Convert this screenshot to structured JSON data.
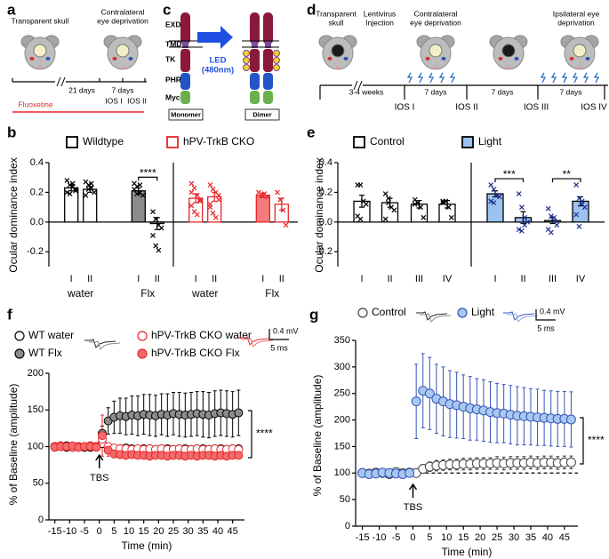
{
  "panels": {
    "letters": [
      "a",
      "b",
      "c",
      "d",
      "e",
      "f",
      "g"
    ]
  },
  "diagrams": {
    "a": {
      "skull": "Transparent skull",
      "deprivation": [
        "Contralateral",
        "eye deprivation"
      ],
      "gap": "21 days",
      "period": "7 days",
      "drug": "Fluoxetine",
      "ios": [
        "IOS I",
        "IOS II"
      ]
    },
    "c": {
      "domains": [
        "EXD",
        "TMD",
        "TK",
        "PHR",
        "Myc"
      ],
      "led": [
        "LED",
        "(480nm)"
      ],
      "states": [
        "Monomer",
        "Dimer"
      ]
    },
    "d": {
      "skull": [
        "Transparent",
        "skull"
      ],
      "injection": [
        "Lentivirus",
        "Injection"
      ],
      "contra": [
        "Contralateral",
        "eye deprivation"
      ],
      "ipsi": [
        "Ipsilateral eye",
        "deprivation"
      ],
      "wait": "3-4 weeks",
      "periods": [
        "7 days",
        "7 days",
        "7 days"
      ],
      "ios": [
        "IOS I",
        "IOS II",
        "IOS III",
        "IOS IV"
      ]
    }
  },
  "chart_data": [
    {
      "type": "bar",
      "ylabel": "Ocular dominance index",
      "categories": [
        "I",
        "II",
        "I",
        "II"
      ],
      "groups": [
        "water",
        "Flx"
      ],
      "ylim": [
        -0.3,
        0.4
      ],
      "yticks": [
        -0.2,
        {
          "value": 0,
          "label": "0.0"
        },
        0.2,
        0.4
      ],
      "series": [
        {
          "name": "Wildtype",
          "color": "#000000",
          "point_color": "#000000",
          "fills": [
            "#ffffff",
            "#ffffff",
            "#8c8c8c",
            "#ffffff"
          ],
          "values": [
            0.23,
            0.22,
            0.21,
            -0.01
          ],
          "errors": [
            0.02,
            0.02,
            0.02,
            0.04
          ],
          "points": [
            [
              0.28,
              0.25,
              0.24,
              0.22,
              0.2,
              0.19,
              0.26,
              0.21
            ],
            [
              0.27,
              0.25,
              0.23,
              0.2,
              0.18,
              0.22,
              0.26
            ],
            [
              0.26,
              0.24,
              0.2,
              0.18,
              0.22,
              0.19,
              0.25
            ],
            [
              0.07,
              0.02,
              -0.02,
              -0.04,
              -0.09,
              -0.16,
              -0.19
            ]
          ]
        },
        {
          "name": "hPV-TrkB CKO",
          "color": "#e8262a",
          "point_color": "#e8262a",
          "fills": [
            "#ffffff",
            "#ffffff",
            "#f47c7c",
            "#ffffff"
          ],
          "values": [
            0.16,
            0.17,
            0.18,
            0.12
          ],
          "errors": [
            0.03,
            0.03,
            0.015,
            0.04
          ],
          "points": [
            [
              0.26,
              0.23,
              0.18,
              0.14,
              0.11,
              0.07,
              0.05,
              0.15,
              0.2
            ],
            [
              0.25,
              0.22,
              0.2,
              0.15,
              0.1,
              0.06,
              0.03,
              0.18,
              0.12
            ],
            [
              0.2,
              0.18,
              0.19,
              0.17
            ],
            [
              0.2,
              0.15,
              0.08,
              -0.02
            ]
          ]
        }
      ],
      "annotations": [
        "****"
      ]
    },
    {
      "type": "bar",
      "ylabel": "Ocular dominance index",
      "categories": [
        "I",
        "II",
        "III",
        "IV"
      ],
      "ylim": [
        -0.3,
        0.4
      ],
      "yticks": [
        -0.2,
        {
          "value": 0,
          "label": "0.0"
        },
        0.2,
        0.4
      ],
      "series": [
        {
          "name": "Control",
          "color": "#000000",
          "point_color": "#000000",
          "fills": [
            "#ffffff",
            "#ffffff",
            "#ffffff",
            "#ffffff"
          ],
          "values": [
            0.14,
            0.13,
            0.12,
            0.12
          ],
          "errors": [
            0.04,
            0.03,
            0.025,
            0.025
          ],
          "points": [
            [
              0.25,
              0.25,
              0.14,
              0.12,
              0.04,
              0.02
            ],
            [
              0.19,
              0.16,
              0.1,
              0.08,
              0.02,
              0.13
            ],
            [
              0.15,
              0.13,
              0.1,
              0.03,
              0.12
            ],
            [
              0.14,
              0.14,
              0.1,
              0.03,
              0.13
            ]
          ]
        },
        {
          "name": "Light",
          "color": "#000000",
          "point_color": "#1f2f8f",
          "fills": [
            "#9cc3ef",
            "#9cc3ef",
            "#9cc3ef",
            "#9cc3ef"
          ],
          "values": [
            0.19,
            0.03,
            0.01,
            0.14
          ],
          "errors": [
            0.02,
            0.04,
            0.02,
            0.03
          ],
          "points": [
            [
              0.25,
              0.22,
              0.18,
              0.17,
              0.14,
              0.13,
              0.18
            ],
            [
              0.19,
              0.1,
              0.03,
              0.0,
              -0.05,
              -0.06,
              -0.02
            ],
            [
              0.09,
              0.04,
              0.01,
              -0.02,
              -0.05,
              -0.07,
              0.03
            ],
            [
              0.25,
              0.16,
              0.14,
              0.1,
              0.05,
              -0.03,
              0.12
            ]
          ]
        }
      ],
      "annotations": [
        "***",
        "**"
      ]
    },
    {
      "type": "line",
      "xlabel": "Time (min)",
      "ylabel": "% of Baseline (amplitude)",
      "x": [
        -15,
        -13,
        -11,
        -9,
        -7,
        -5,
        -3,
        -1,
        1,
        3,
        5,
        7,
        9,
        11,
        13,
        15,
        17,
        19,
        21,
        23,
        25,
        27,
        29,
        31,
        33,
        35,
        37,
        39,
        41,
        43,
        45,
        47
      ],
      "xlim": [
        -17,
        49
      ],
      "xticks": [
        -15,
        -10,
        -5,
        0,
        5,
        10,
        15,
        20,
        25,
        30,
        35,
        40,
        45
      ],
      "ylim": [
        0,
        200
      ],
      "yticks": [
        0,
        50,
        100,
        150,
        200
      ],
      "series": [
        {
          "name": "WT water",
          "color": "#000000",
          "fill": "#ffffff",
          "values": [
            100,
            101,
            99,
            100,
            100,
            99,
            101,
            100,
            104,
            99,
            97,
            97,
            98,
            97,
            96,
            97,
            97,
            96,
            97,
            97,
            96,
            97,
            97,
            96,
            97,
            97,
            96,
            97,
            97,
            96,
            97,
            97
          ]
        },
        {
          "name": "WT Flx",
          "color": "#000000",
          "fill": "#8c8c8c",
          "values": [
            100,
            100,
            101,
            99,
            100,
            100,
            99,
            100,
            118,
            135,
            140,
            142,
            141,
            143,
            142,
            144,
            143,
            142,
            144,
            143,
            145,
            144,
            143,
            144,
            145,
            144,
            143,
            145,
            146,
            145,
            144,
            146
          ],
          "errors": [
            3,
            3,
            3,
            3,
            3,
            3,
            3,
            3,
            10,
            18,
            22,
            24,
            25,
            26,
            27,
            27,
            28,
            28,
            28,
            29,
            29,
            30,
            30,
            30,
            30,
            31,
            31,
            31,
            31,
            31,
            31,
            31
          ]
        },
        {
          "name": "hPV-TrkB CKO water",
          "color": "#e8262a",
          "fill": "#ffffff",
          "values": [
            100,
            101,
            100,
            99,
            100,
            100,
            101,
            100,
            110,
            100,
            98,
            97,
            97,
            96,
            97,
            96,
            97,
            96,
            97,
            96,
            96,
            97,
            96,
            96,
            97,
            96,
            96,
            97,
            96,
            96,
            97,
            96
          ]
        },
        {
          "name": "hPV-TrkB CKO Flx",
          "color": "#e8262a",
          "fill": "#f26b6b",
          "values": [
            99,
            100,
            100,
            101,
            99,
            100,
            100,
            99,
            115,
            95,
            90,
            89,
            88,
            89,
            88,
            88,
            87,
            88,
            88,
            87,
            88,
            88,
            87,
            88,
            87,
            88,
            88,
            87,
            88,
            87,
            88,
            88
          ],
          "errors": [
            2,
            2,
            2,
            2,
            2,
            2,
            2,
            2,
            28,
            8,
            5,
            4,
            4,
            4,
            4,
            4,
            4,
            4,
            4,
            4,
            4,
            4,
            4,
            4,
            4,
            4,
            4,
            4,
            4,
            4,
            4,
            4
          ]
        }
      ],
      "annotations": [
        "TBS",
        "****",
        "0.4 mV",
        "5 ms"
      ]
    },
    {
      "type": "line",
      "xlabel": "Time (min)",
      "ylabel": "% of Baseline (amplitude)",
      "x": [
        -15,
        -13,
        -11,
        -9,
        -7,
        -5,
        -3,
        -1,
        1,
        3,
        5,
        7,
        9,
        11,
        13,
        15,
        17,
        19,
        21,
        23,
        25,
        27,
        29,
        31,
        33,
        35,
        37,
        39,
        41,
        43,
        45,
        47
      ],
      "xlim": [
        -17,
        49
      ],
      "xticks": [
        -15,
        -10,
        -5,
        0,
        5,
        10,
        15,
        20,
        25,
        30,
        35,
        40,
        45
      ],
      "ylim": [
        0,
        350
      ],
      "yticks": [
        0,
        50,
        100,
        150,
        200,
        250,
        300,
        350
      ],
      "baseline": 100,
      "series": [
        {
          "name": "Control",
          "color": "#444444",
          "fill": "#ffffff",
          "values": [
            100,
            99,
            101,
            100,
            98,
            102,
            100,
            101,
            100,
            108,
            112,
            114,
            115,
            116,
            116,
            117,
            117,
            118,
            118,
            118,
            119,
            118,
            119,
            119,
            119,
            120,
            119,
            120,
            120,
            119,
            120,
            120
          ],
          "errors": [
            4,
            4,
            4,
            4,
            4,
            4,
            4,
            4,
            6,
            8,
            9,
            10,
            10,
            10,
            10,
            11,
            11,
            11,
            11,
            11,
            12,
            12,
            12,
            12,
            12,
            12,
            12,
            12,
            12,
            12,
            12,
            12
          ]
        },
        {
          "name": "Light",
          "color": "#3556b8",
          "fill": "#a8c8f0",
          "values": [
            100,
            98,
            99,
            101,
            100,
            99,
            98,
            100,
            235,
            255,
            250,
            240,
            235,
            230,
            228,
            225,
            222,
            220,
            218,
            215,
            213,
            212,
            210,
            208,
            207,
            206,
            205,
            204,
            203,
            202,
            202,
            201
          ],
          "errors": [
            6,
            6,
            6,
            6,
            6,
            6,
            6,
            6,
            70,
            70,
            68,
            65,
            65,
            63,
            62,
            60,
            60,
            58,
            58,
            57,
            56,
            55,
            55,
            55,
            54,
            53,
            53,
            52,
            52,
            52,
            52,
            52
          ]
        }
      ],
      "annotations": [
        "TBS",
        "****",
        "0.4 mV",
        "5 ms"
      ]
    }
  ]
}
